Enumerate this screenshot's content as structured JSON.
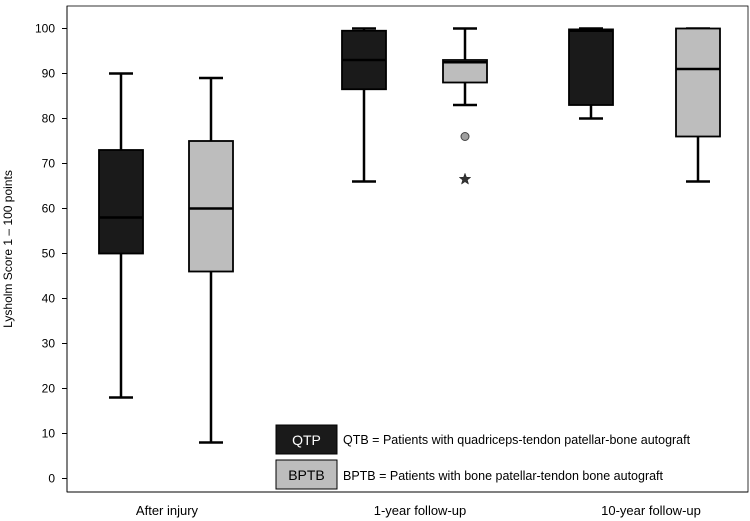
{
  "chart_data": {
    "type": "boxplot",
    "ylabel": "Lysholm Score 1 – 100 points",
    "ylim": [
      -3,
      105
    ],
    "yticks": [
      0,
      10,
      20,
      30,
      40,
      50,
      60,
      70,
      80,
      90,
      100
    ],
    "categories": [
      "After injury",
      "1-year follow-up",
      "10-year follow-up"
    ],
    "series": [
      {
        "name": "QTP",
        "color": "#1a1a1a",
        "boxes": [
          {
            "min": 18,
            "q1": 50,
            "median": 58,
            "q3": 73,
            "max": 90,
            "outliers": []
          },
          {
            "min": 66,
            "q1": 86.5,
            "median": 93,
            "q3": 99.5,
            "max": 100,
            "outliers": []
          },
          {
            "min": 80,
            "q1": 83,
            "median": 99.5,
            "q3": 99.8,
            "max": 100,
            "outliers": []
          }
        ]
      },
      {
        "name": "BPTB",
        "color": "#bdbdbd",
        "boxes": [
          {
            "min": 8,
            "q1": 46,
            "median": 60,
            "q3": 75,
            "max": 89,
            "outliers": []
          },
          {
            "min": 83,
            "q1": 88,
            "median": 92.5,
            "q3": 93,
            "max": 100,
            "outliers": [
              {
                "value": 76,
                "marker": "circle"
              },
              {
                "value": 66.5,
                "marker": "star"
              }
            ]
          },
          {
            "min": 66,
            "q1": 76,
            "median": 91,
            "q3": 100,
            "max": 100,
            "outliers": []
          }
        ]
      }
    ],
    "legend": {
      "placement": "bottom-right",
      "items": [
        {
          "key": "QTP",
          "color": "#1a1a1a",
          "text_color": "#ffffff",
          "description": "QTB = Patients with quadriceps-tendon patellar-bone autograft"
        },
        {
          "key": "BPTB",
          "color": "#bdbdbd",
          "text_color": "#000000",
          "description": "BPTB = Patients with bone patellar-tendon bone autograft"
        }
      ]
    }
  }
}
